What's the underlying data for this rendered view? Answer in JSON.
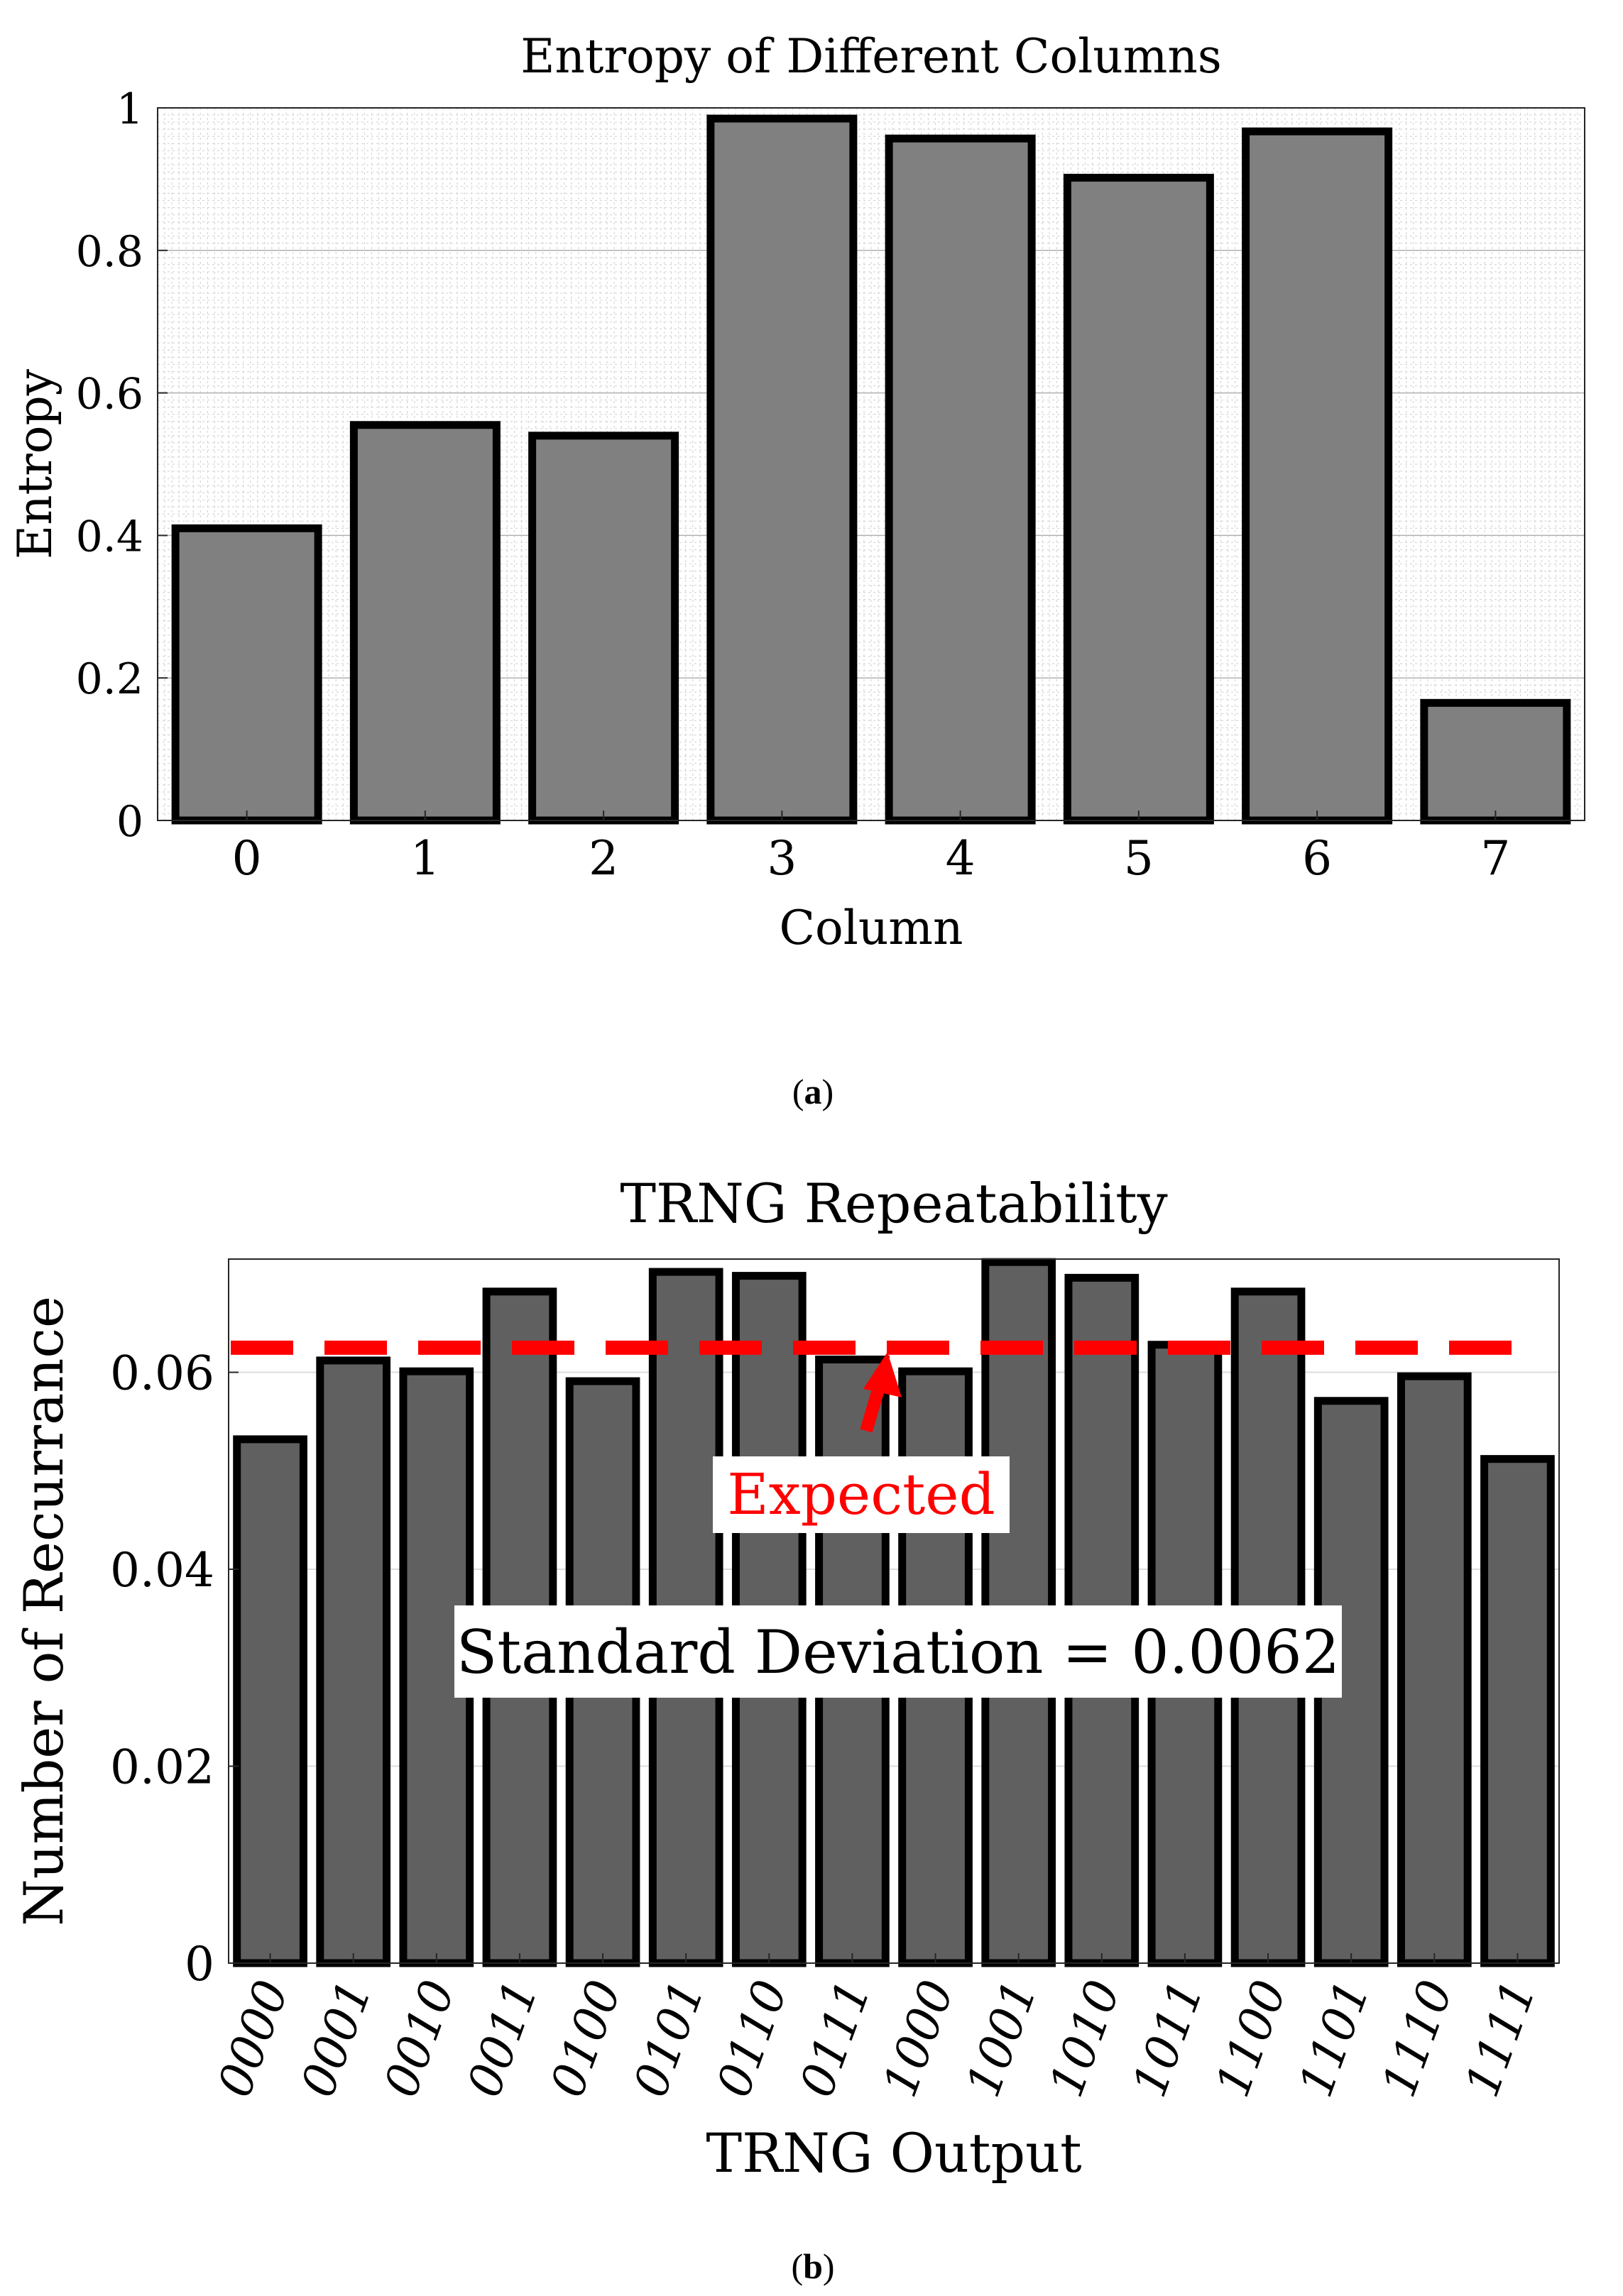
{
  "chart_data": [
    {
      "id": "a",
      "panel_label": "a",
      "type": "bar",
      "title": "Entropy of Different Columns",
      "xlabel": "Column",
      "ylabel": "Entropy",
      "categories": [
        "0",
        "1",
        "2",
        "3",
        "4",
        "5",
        "6",
        "7"
      ],
      "values": [
        0.41,
        0.555,
        0.54,
        0.985,
        0.957,
        0.902,
        0.967,
        0.165
      ],
      "ylim": [
        0,
        1
      ],
      "yticks": [
        0,
        0.2,
        0.4,
        0.6,
        0.8,
        1
      ],
      "ytick_labels": [
        "0",
        "0.2",
        "0.4",
        "0.6",
        "0.8",
        "1"
      ],
      "grid": "minor",
      "bar_color": "#808080",
      "edge_color": "#000000"
    },
    {
      "id": "b",
      "panel_label": "b",
      "type": "bar",
      "title": "TRNG Repeatability",
      "xlabel": "TRNG Output",
      "ylabel": "Number of Recurrance",
      "categories": [
        "0000",
        "0001",
        "0010",
        "0011",
        "0100",
        "0101",
        "0110",
        "0111",
        "1000",
        "1001",
        "1010",
        "1011",
        "1100",
        "1101",
        "1110",
        "1111"
      ],
      "values": [
        0.0532,
        0.0612,
        0.0601,
        0.0682,
        0.0591,
        0.0702,
        0.0698,
        0.0613,
        0.0601,
        0.0712,
        0.0696,
        0.0628,
        0.0682,
        0.0571,
        0.0596,
        0.0512
      ],
      "ylim": [
        0,
        0.0715
      ],
      "yticks": [
        0,
        0.02,
        0.04,
        0.06
      ],
      "ytick_labels": [
        "0",
        "0.02",
        "0.04",
        "0.06"
      ],
      "grid": "major",
      "bar_color": "#606060",
      "edge_color": "#000000",
      "reference_line": {
        "value": 0.0625,
        "label": "Expected",
        "color": "#ff0000"
      },
      "annotation": "Standard Deviation = 0.0062"
    }
  ]
}
